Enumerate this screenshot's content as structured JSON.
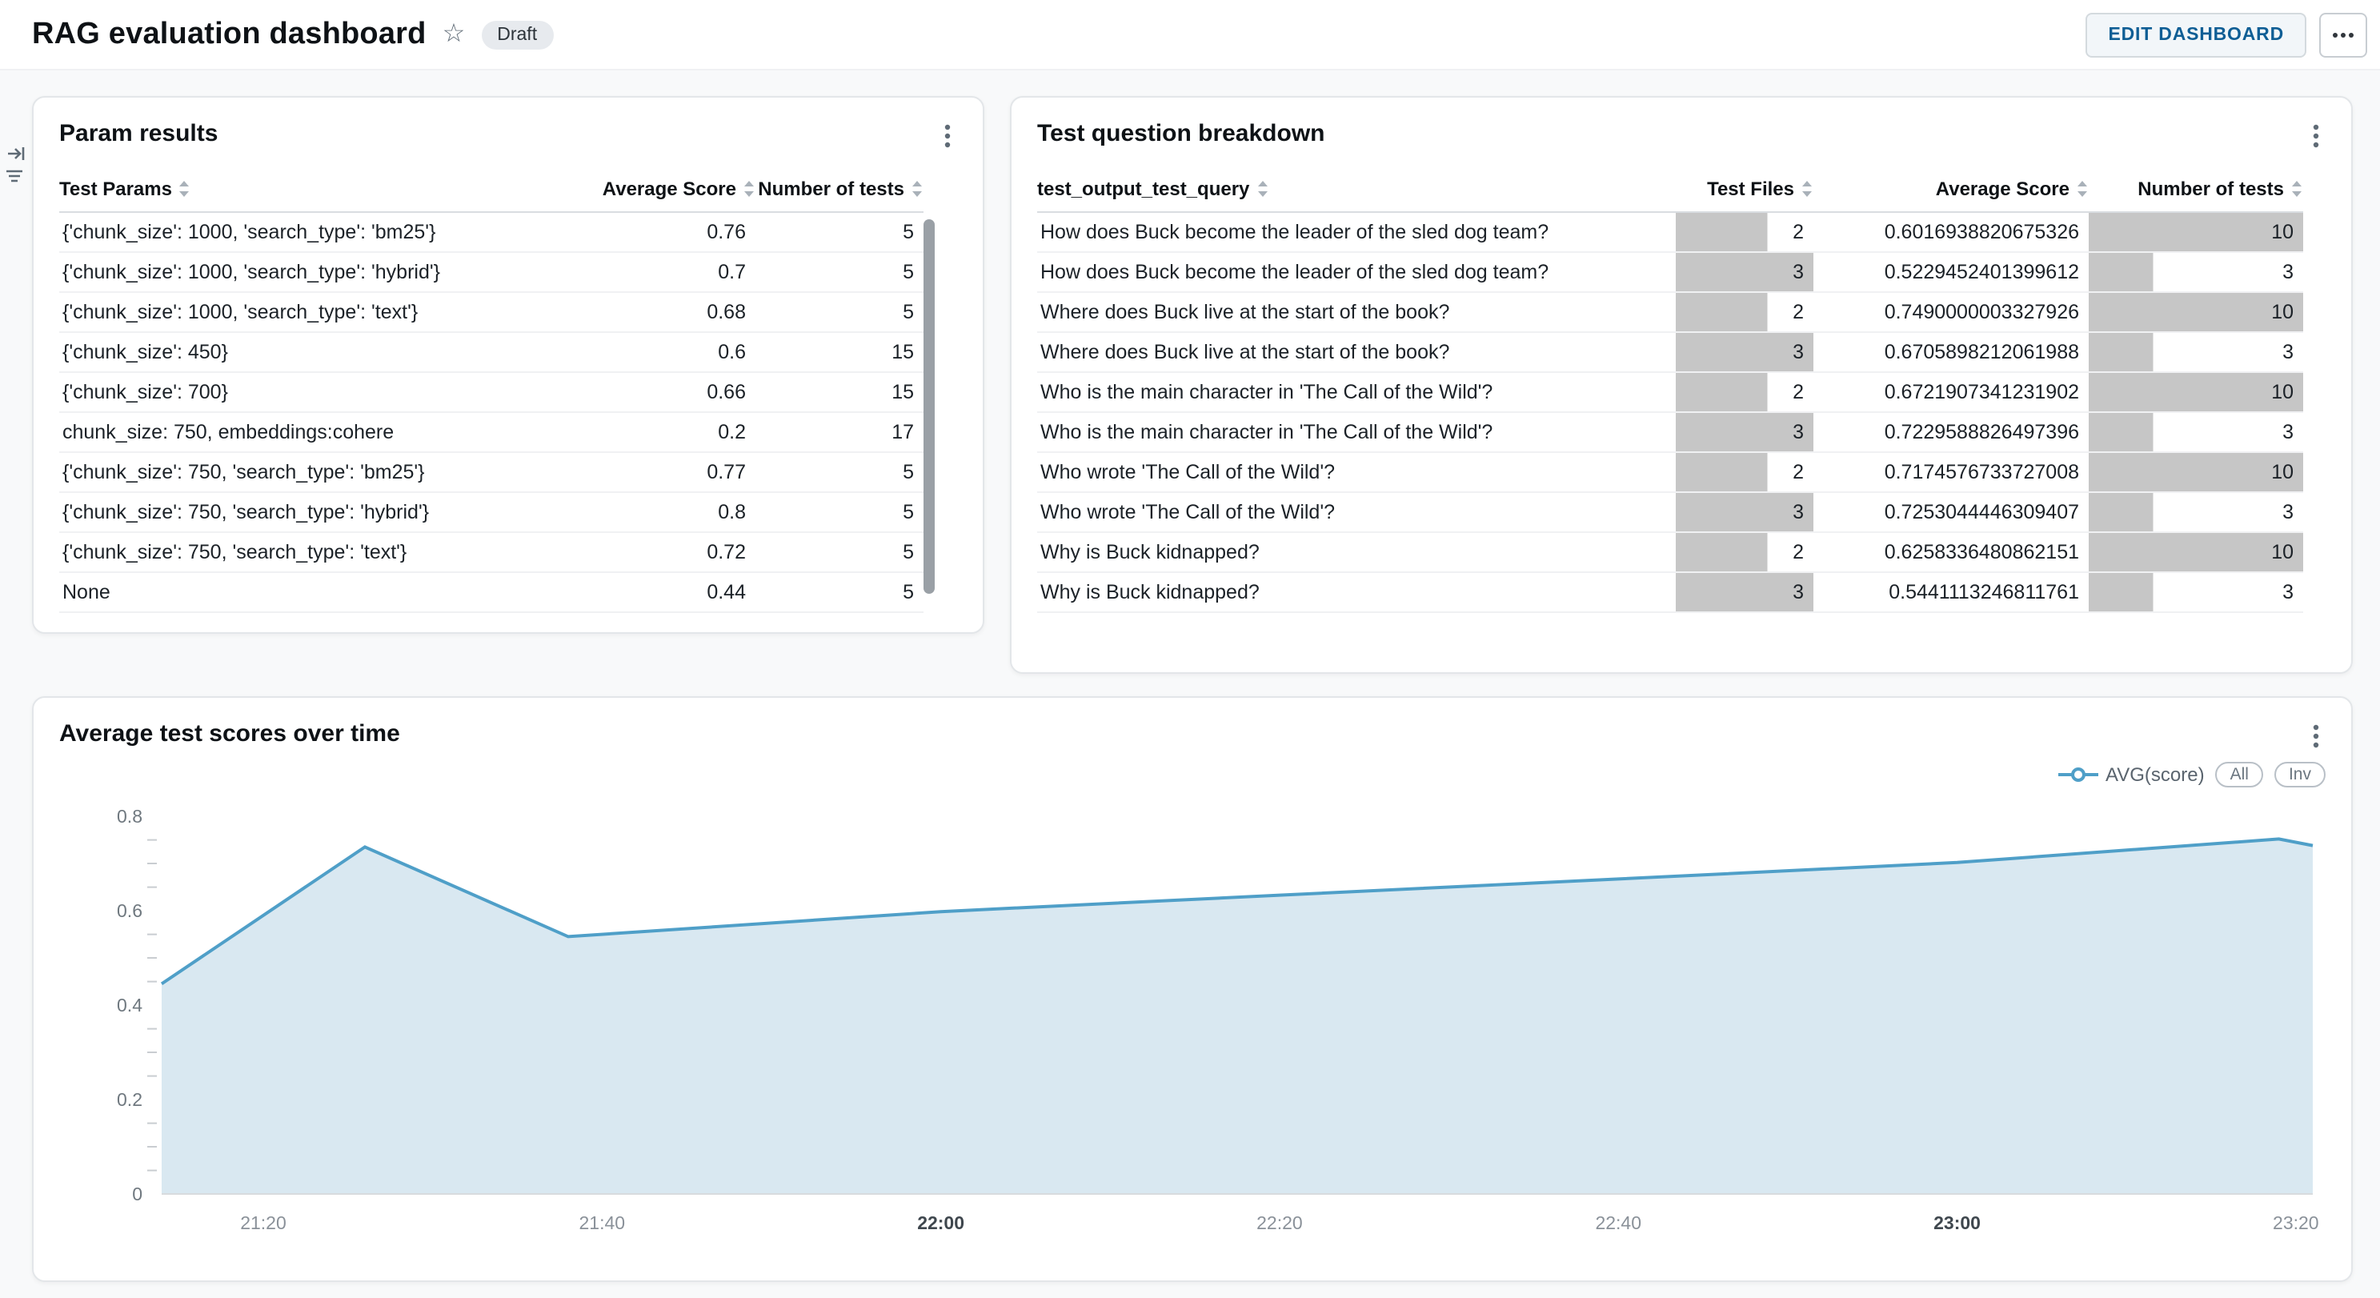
{
  "header": {
    "title": "RAG evaluation dashboard",
    "status_badge": "Draft",
    "edit_button": "EDIT DASHBOARD"
  },
  "param_results": {
    "title": "Param results",
    "columns": [
      "Test Params",
      "Average Score",
      "Number of tests"
    ],
    "rows": [
      [
        "{'chunk_size': 1000, 'search_type': 'bm25'}",
        "0.76",
        "5"
      ],
      [
        "{'chunk_size': 1000, 'search_type': 'hybrid'}",
        "0.7",
        "5"
      ],
      [
        "{'chunk_size': 1000, 'search_type': 'text'}",
        "0.68",
        "5"
      ],
      [
        "{'chunk_size': 450}",
        "0.6",
        "15"
      ],
      [
        "{'chunk_size': 700}",
        "0.66",
        "15"
      ],
      [
        "chunk_size: 750, embeddings:cohere",
        "0.2",
        "17"
      ],
      [
        "{'chunk_size': 750, 'search_type': 'bm25'}",
        "0.77",
        "5"
      ],
      [
        "{'chunk_size': 750, 'search_type': 'hybrid'}",
        "0.8",
        "5"
      ],
      [
        "{'chunk_size': 750, 'search_type': 'text'}",
        "0.72",
        "5"
      ],
      [
        "None",
        "0.44",
        "5"
      ]
    ]
  },
  "question_breakdown": {
    "title": "Test question breakdown",
    "columns": [
      "test_output_test_query",
      "Test Files",
      "Average Score",
      "Number of tests"
    ],
    "bar_color": "#c6c6c6",
    "test_files_max": 3,
    "num_tests_max": 10,
    "rows": [
      {
        "query": "How does Buck become the leader of the sled dog team?",
        "files": "2",
        "score": "0.6016938820675326",
        "tests": "10"
      },
      {
        "query": "How does Buck become the leader of the sled dog team?",
        "files": "3",
        "score": "0.5229452401399612",
        "tests": "3"
      },
      {
        "query": "Where does Buck live at the start of the book?",
        "files": "2",
        "score": "0.7490000003327926",
        "tests": "10"
      },
      {
        "query": "Where does Buck live at the start of the book?",
        "files": "3",
        "score": "0.6705898212061988",
        "tests": "3"
      },
      {
        "query": "Who is the main character in 'The Call of the Wild'?",
        "files": "2",
        "score": "0.6721907341231902",
        "tests": "10"
      },
      {
        "query": "Who is the main character in 'The Call of the Wild'?",
        "files": "3",
        "score": "0.7229588826497396",
        "tests": "3"
      },
      {
        "query": "Who wrote 'The Call of the Wild'?",
        "files": "2",
        "score": "0.7174576733727008",
        "tests": "10"
      },
      {
        "query": "Who wrote 'The Call of the Wild'?",
        "files": "3",
        "score": "0.7253044446309407",
        "tests": "3"
      },
      {
        "query": "Why is Buck kidnapped?",
        "files": "2",
        "score": "0.6258336480862151",
        "tests": "10"
      },
      {
        "query": "Why is Buck kidnapped?",
        "files": "3",
        "score": "0.5441113246811761",
        "tests": "3"
      }
    ]
  },
  "time_chart": {
    "title": "Average test scores over time",
    "legend": {
      "series": "AVG(score)",
      "all_button": "All",
      "inv_button": "Inv"
    }
  },
  "chart_data": {
    "type": "area",
    "title": "Average test scores over time",
    "series_name": "AVG(score)",
    "line_color": "#4f9fc8",
    "fill_color": "#d9e8f1",
    "ylim": [
      0,
      0.8
    ],
    "y_ticks": [
      "0",
      "0.2",
      "0.4",
      "0.6",
      "0.8"
    ],
    "y_minor_interval": 0.05,
    "x_domain": [
      0,
      127
    ],
    "x_ticks": [
      {
        "t": 6,
        "label": "21:20",
        "bold": false
      },
      {
        "t": 26,
        "label": "21:40",
        "bold": false
      },
      {
        "t": 46,
        "label": "22:00",
        "bold": true
      },
      {
        "t": 66,
        "label": "22:20",
        "bold": false
      },
      {
        "t": 86,
        "label": "22:40",
        "bold": false
      },
      {
        "t": 106,
        "label": "23:00",
        "bold": true
      },
      {
        "t": 126,
        "label": "23:20",
        "bold": false
      }
    ],
    "points": [
      [
        0,
        0.445
      ],
      [
        12,
        0.735
      ],
      [
        24,
        0.545
      ],
      [
        46,
        0.598
      ],
      [
        66,
        0.633
      ],
      [
        86,
        0.667
      ],
      [
        106,
        0.702
      ],
      [
        125,
        0.752
      ],
      [
        127,
        0.738
      ]
    ],
    "legend_position": "top-right",
    "grid": false
  }
}
